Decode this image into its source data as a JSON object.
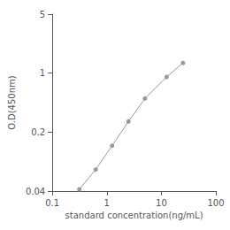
{
  "chart_data": {
    "type": "line",
    "xlabel": "standard concentration(ng/mL)",
    "ylabel": "O.D(450nm)",
    "x": [
      0.313,
      0.625,
      1.25,
      2.5,
      5.0,
      12.5,
      25.0
    ],
    "values": [
      0.042,
      0.072,
      0.138,
      0.268,
      0.5,
      0.9,
      1.32
    ],
    "color": "#999999",
    "marker": "circle",
    "log": true,
    "grid": false,
    "xlim": [
      0.1,
      100
    ],
    "ylim": [
      0.04,
      5
    ],
    "xticks": [
      0.1,
      1,
      10,
      100
    ],
    "yticks": [
      0.04,
      0.2,
      1,
      5
    ]
  }
}
